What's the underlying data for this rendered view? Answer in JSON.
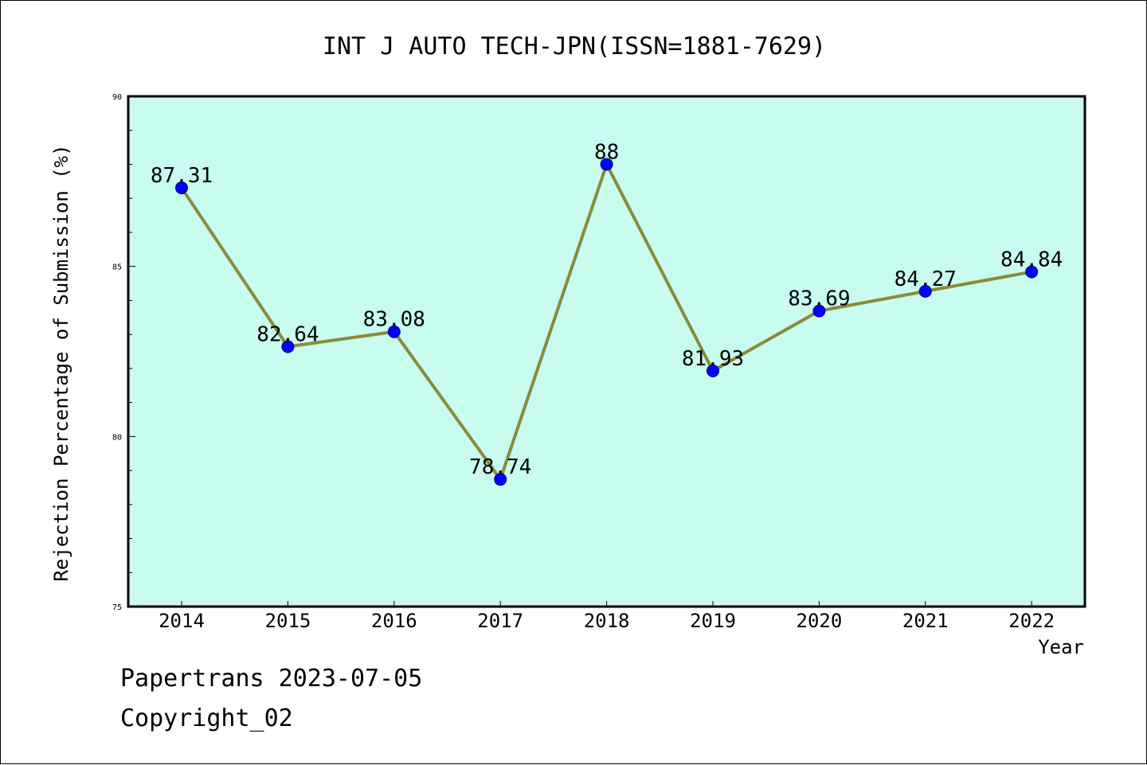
{
  "chart_data": {
    "type": "line",
    "title": "INT J AUTO TECH-JPN(ISSN=1881-7629)",
    "xlabel": "Year",
    "ylabel": "Rejection Percentage of Submission (%)",
    "categories": [
      "2014",
      "2015",
      "2016",
      "2017",
      "2018",
      "2019",
      "2020",
      "2021",
      "2022"
    ],
    "series": [
      {
        "values": [
          87.31,
          82.64,
          83.08,
          78.74,
          88,
          81.93,
          83.69,
          84.27,
          84.84
        ],
        "labels": [
          "87.31",
          "82.64",
          "83.08",
          "78.74",
          "88",
          "81.93",
          "83.69",
          "84.27",
          "84.84"
        ]
      }
    ],
    "ylim": [
      75,
      90
    ],
    "yticks": [
      "75",
      "80",
      "85",
      "90"
    ],
    "grid": false,
    "colors": {
      "plot_background": "#c8fcee",
      "line": "#8b8b3a",
      "marker": "#0000ff"
    }
  },
  "footer": {
    "line1": "Papertrans 2023-07-05",
    "line2": "Copyright_02"
  }
}
